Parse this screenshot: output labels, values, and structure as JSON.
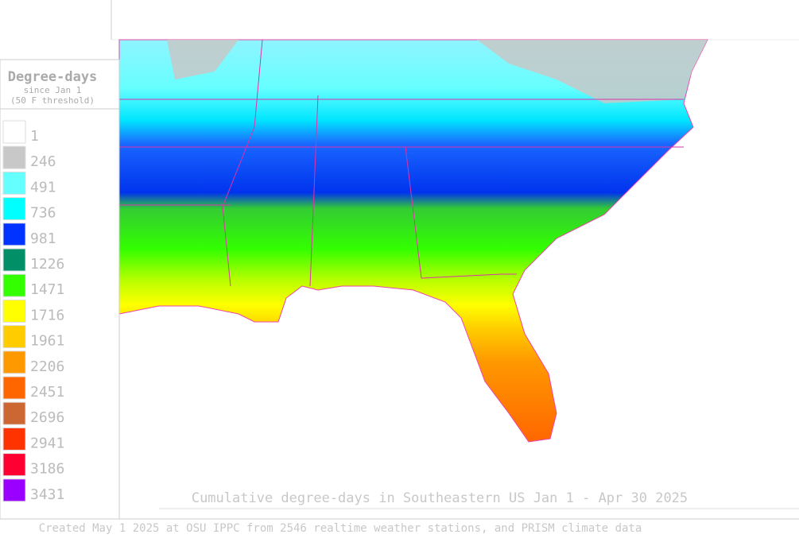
{
  "legend": {
    "title": "Degree-days",
    "subtitle": "since Jan 1",
    "note": "(50 F threshold)",
    "items": [
      {
        "label": "1",
        "color": "#ffffff"
      },
      {
        "label": "246",
        "color": "#c8c8c8"
      },
      {
        "label": "491",
        "color": "#66ffff"
      },
      {
        "label": "736",
        "color": "#00ffff"
      },
      {
        "label": "981",
        "color": "#0033ff"
      },
      {
        "label": "1226",
        "color": "#008f66"
      },
      {
        "label": "1471",
        "color": "#33ff00"
      },
      {
        "label": "1716",
        "color": "#ffff00"
      },
      {
        "label": "1961",
        "color": "#ffcc00"
      },
      {
        "label": "2206",
        "color": "#ff9900"
      },
      {
        "label": "2451",
        "color": "#ff6600"
      },
      {
        "label": "2696",
        "color": "#cc6633"
      },
      {
        "label": "2941",
        "color": "#ff3300"
      },
      {
        "label": "3186",
        "color": "#ff0033"
      },
      {
        "label": "3431",
        "color": "#9900ff"
      }
    ]
  },
  "map": {
    "title": "Cumulative degree-days in Southeastern US Jan 1 - Apr 30 2025"
  },
  "footer": "Created May 1 2025 at OSU IPPC from 2546 realtime weather stations, and PRISM climate data"
}
